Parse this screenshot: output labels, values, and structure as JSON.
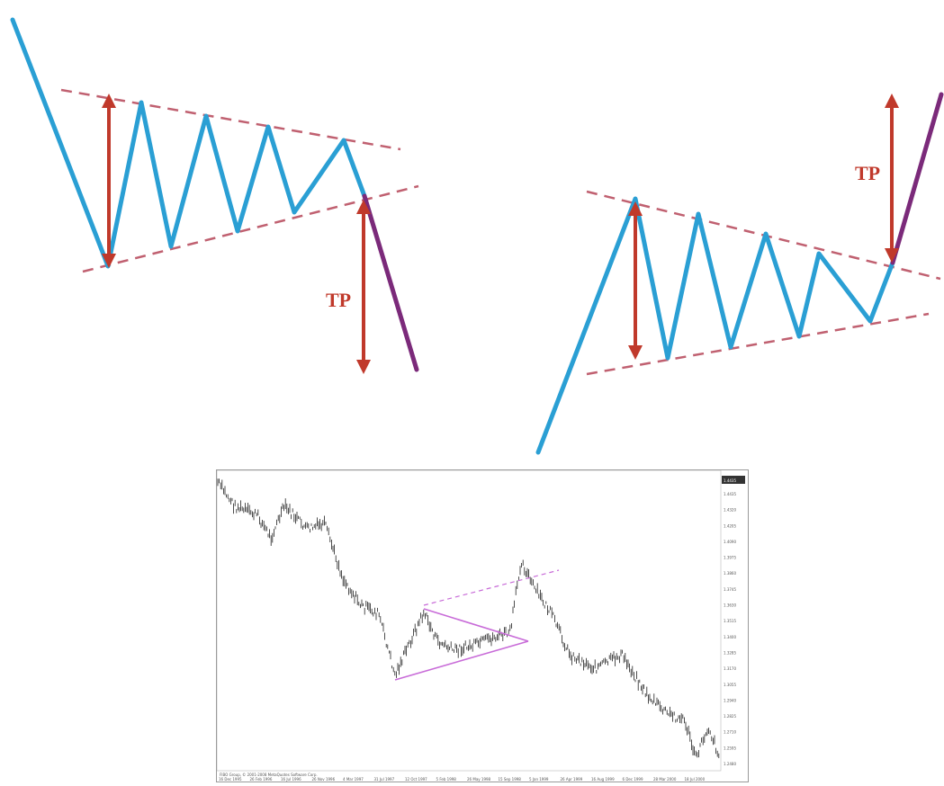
{
  "diagram": {
    "left_pattern": {
      "pattern": "symmetrical-triangle-bearish-breakout",
      "target_label": "TP"
    },
    "right_pattern": {
      "pattern": "symmetrical-triangle-bullish-breakout",
      "target_label": "TP"
    },
    "colors": {
      "price_line": "#2a9fd4",
      "trend_lines": "#c06070",
      "height_arrows": "#c0392b",
      "breakout_move": "#7b2a7a",
      "example_triangle": "#c86bd8"
    }
  },
  "example_chart": {
    "footer_left": "FIBO Group, © 2001-2008 MetaQuotes Software Corp.",
    "last_price_label": "1.4435",
    "price_axis_labels": [
      "1.4435",
      "1.4320",
      "1.4205",
      "1.4090",
      "1.3975",
      "1.3860",
      "1.3745",
      "1.3630",
      "1.3515",
      "1.3400",
      "1.3285",
      "1.3170",
      "1.3055",
      "1.2940",
      "1.2825",
      "1.2710",
      "1.2595",
      "1.2480"
    ],
    "date_axis_labels": [
      "16 Dec 1995",
      "26 Feb 1996",
      "16 Jul 1996",
      "26 Nov 1996",
      "4 Mar 1997",
      "31 Jul 1997",
      "12 Oct 1997",
      "5 Feb 1998",
      "26 May 1998",
      "15 Sep 1998",
      "5 Jan 1999",
      "26 Apr 1999",
      "16 Aug 1999",
      "6 Dec 1999",
      "28 Mar 2000",
      "18 Jul 2000"
    ]
  }
}
